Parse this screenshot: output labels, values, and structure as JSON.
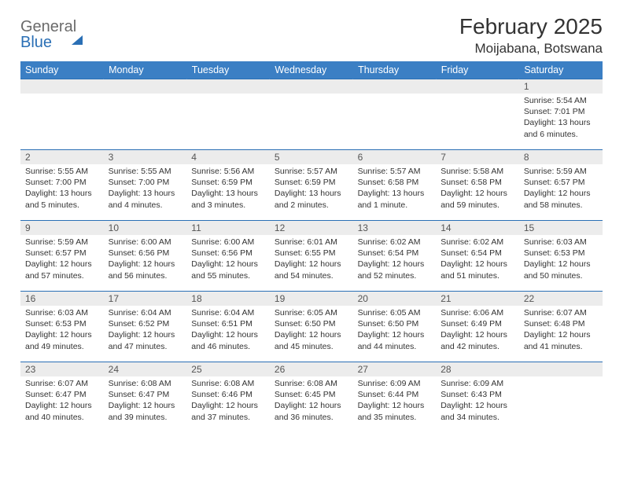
{
  "brand": {
    "part1": "General",
    "part2": "Blue"
  },
  "title": {
    "month": "February 2025",
    "location": "Moijabana, Botswana"
  },
  "colors": {
    "header_bg": "#3b7fc4",
    "header_fg": "#ffffff",
    "daynum_bg": "#ececec",
    "row_border": "#2a6fb5",
    "brand_gray": "#6a6a6a",
    "brand_blue": "#2a6fb5",
    "text": "#333333",
    "page_bg": "#ffffff"
  },
  "weekdays": [
    "Sunday",
    "Monday",
    "Tuesday",
    "Wednesday",
    "Thursday",
    "Friday",
    "Saturday"
  ],
  "first_weekday_index": 6,
  "days": [
    {
      "n": 1,
      "sr": "5:54 AM",
      "ss": "7:01 PM",
      "dl": "13 hours and 6 minutes."
    },
    {
      "n": 2,
      "sr": "5:55 AM",
      "ss": "7:00 PM",
      "dl": "13 hours and 5 minutes."
    },
    {
      "n": 3,
      "sr": "5:55 AM",
      "ss": "7:00 PM",
      "dl": "13 hours and 4 minutes."
    },
    {
      "n": 4,
      "sr": "5:56 AM",
      "ss": "6:59 PM",
      "dl": "13 hours and 3 minutes."
    },
    {
      "n": 5,
      "sr": "5:57 AM",
      "ss": "6:59 PM",
      "dl": "13 hours and 2 minutes."
    },
    {
      "n": 6,
      "sr": "5:57 AM",
      "ss": "6:58 PM",
      "dl": "13 hours and 1 minute."
    },
    {
      "n": 7,
      "sr": "5:58 AM",
      "ss": "6:58 PM",
      "dl": "12 hours and 59 minutes."
    },
    {
      "n": 8,
      "sr": "5:59 AM",
      "ss": "6:57 PM",
      "dl": "12 hours and 58 minutes."
    },
    {
      "n": 9,
      "sr": "5:59 AM",
      "ss": "6:57 PM",
      "dl": "12 hours and 57 minutes."
    },
    {
      "n": 10,
      "sr": "6:00 AM",
      "ss": "6:56 PM",
      "dl": "12 hours and 56 minutes."
    },
    {
      "n": 11,
      "sr": "6:00 AM",
      "ss": "6:56 PM",
      "dl": "12 hours and 55 minutes."
    },
    {
      "n": 12,
      "sr": "6:01 AM",
      "ss": "6:55 PM",
      "dl": "12 hours and 54 minutes."
    },
    {
      "n": 13,
      "sr": "6:02 AM",
      "ss": "6:54 PM",
      "dl": "12 hours and 52 minutes."
    },
    {
      "n": 14,
      "sr": "6:02 AM",
      "ss": "6:54 PM",
      "dl": "12 hours and 51 minutes."
    },
    {
      "n": 15,
      "sr": "6:03 AM",
      "ss": "6:53 PM",
      "dl": "12 hours and 50 minutes."
    },
    {
      "n": 16,
      "sr": "6:03 AM",
      "ss": "6:53 PM",
      "dl": "12 hours and 49 minutes."
    },
    {
      "n": 17,
      "sr": "6:04 AM",
      "ss": "6:52 PM",
      "dl": "12 hours and 47 minutes."
    },
    {
      "n": 18,
      "sr": "6:04 AM",
      "ss": "6:51 PM",
      "dl": "12 hours and 46 minutes."
    },
    {
      "n": 19,
      "sr": "6:05 AM",
      "ss": "6:50 PM",
      "dl": "12 hours and 45 minutes."
    },
    {
      "n": 20,
      "sr": "6:05 AM",
      "ss": "6:50 PM",
      "dl": "12 hours and 44 minutes."
    },
    {
      "n": 21,
      "sr": "6:06 AM",
      "ss": "6:49 PM",
      "dl": "12 hours and 42 minutes."
    },
    {
      "n": 22,
      "sr": "6:07 AM",
      "ss": "6:48 PM",
      "dl": "12 hours and 41 minutes."
    },
    {
      "n": 23,
      "sr": "6:07 AM",
      "ss": "6:47 PM",
      "dl": "12 hours and 40 minutes."
    },
    {
      "n": 24,
      "sr": "6:08 AM",
      "ss": "6:47 PM",
      "dl": "12 hours and 39 minutes."
    },
    {
      "n": 25,
      "sr": "6:08 AM",
      "ss": "6:46 PM",
      "dl": "12 hours and 37 minutes."
    },
    {
      "n": 26,
      "sr": "6:08 AM",
      "ss": "6:45 PM",
      "dl": "12 hours and 36 minutes."
    },
    {
      "n": 27,
      "sr": "6:09 AM",
      "ss": "6:44 PM",
      "dl": "12 hours and 35 minutes."
    },
    {
      "n": 28,
      "sr": "6:09 AM",
      "ss": "6:43 PM",
      "dl": "12 hours and 34 minutes."
    }
  ],
  "labels": {
    "sunrise": "Sunrise:",
    "sunset": "Sunset:",
    "daylight": "Daylight:"
  }
}
